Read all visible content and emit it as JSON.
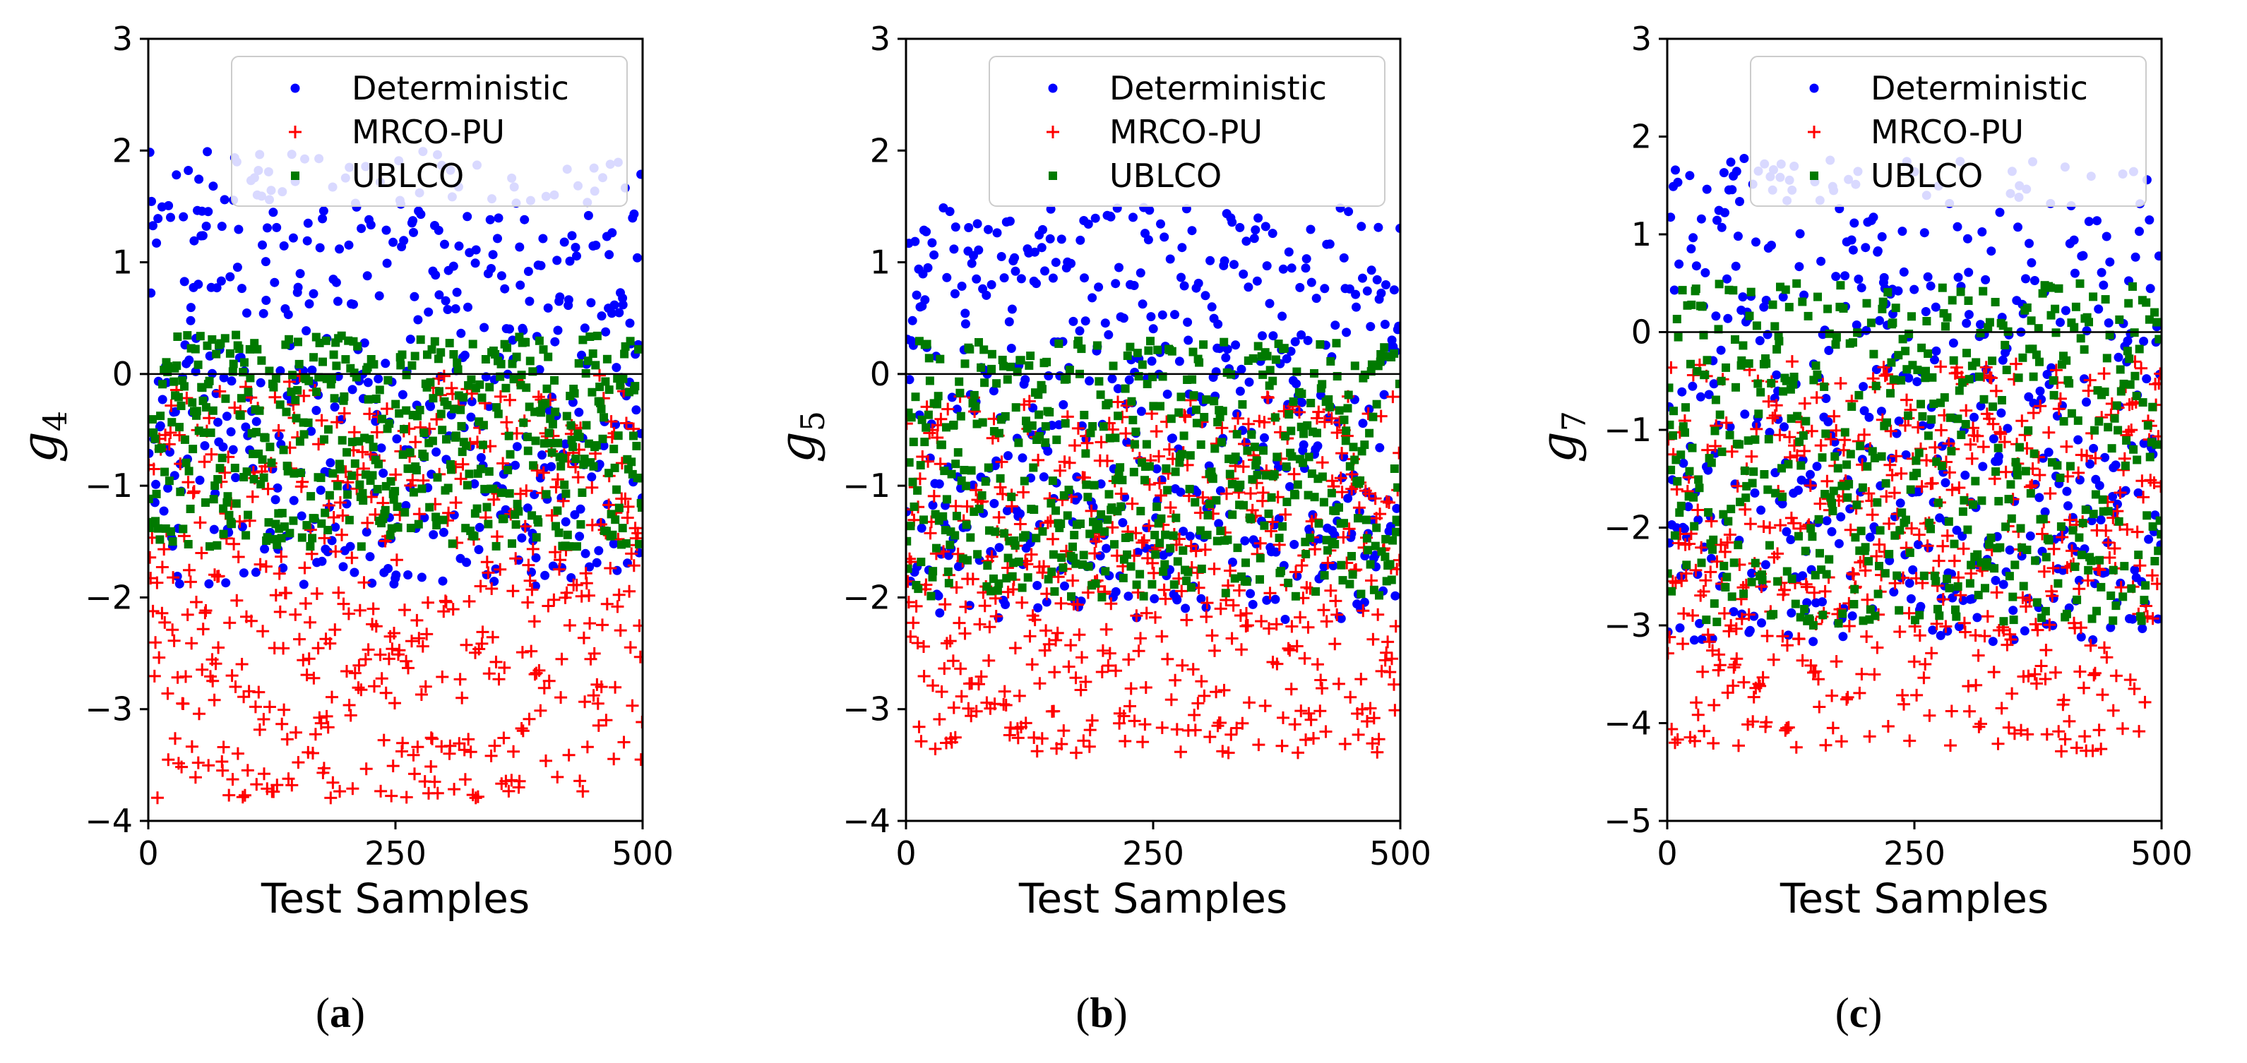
{
  "figure": {
    "panels": [
      {
        "caption_letter": "a",
        "ylabel_main": "g",
        "ylabel_sub": "4",
        "xlabel": "Test Samples"
      },
      {
        "caption_letter": "b",
        "ylabel_main": "g",
        "ylabel_sub": "5",
        "xlabel": "Test Samples"
      },
      {
        "caption_letter": "c",
        "ylabel_main": "g",
        "ylabel_sub": "7",
        "xlabel": "Test Samples"
      }
    ]
  },
  "chart_data": [
    {
      "type": "scatter",
      "title": "",
      "xlabel": "Test Samples",
      "ylabel": "g4",
      "xlim": [
        0,
        500
      ],
      "ylim": [
        -4,
        3
      ],
      "xticks": [
        "0",
        "250",
        "500"
      ],
      "yticks": [
        "3",
        "2",
        "1",
        "0",
        "−1",
        "−2",
        "−3",
        "−4"
      ],
      "reference_line_y": 0,
      "legend_position": "top-right",
      "series_count": 3,
      "series": [
        {
          "name": "Deterministic",
          "color": "#0000ff",
          "marker": "circle",
          "n_points": 500,
          "y_range": [
            -1.9,
            2.0
          ]
        },
        {
          "name": "MRCO-PU",
          "color": "#ff0000",
          "marker": "plus",
          "n_points": 500,
          "y_range": [
            -3.8,
            0.0
          ]
        },
        {
          "name": "UBLCO",
          "color": "#007a00",
          "marker": "square",
          "n_points": 500,
          "y_range": [
            -1.55,
            0.35
          ]
        }
      ]
    },
    {
      "type": "scatter",
      "title": "",
      "xlabel": "Test Samples",
      "ylabel": "g5",
      "xlim": [
        0,
        500
      ],
      "ylim": [
        -4,
        3
      ],
      "xticks": [
        "0",
        "250",
        "500"
      ],
      "yticks": [
        "3",
        "2",
        "1",
        "0",
        "−1",
        "−2",
        "−3",
        "−4"
      ],
      "reference_line_y": 0,
      "legend_position": "top-right",
      "series_count": 3,
      "series": [
        {
          "name": "Deterministic",
          "color": "#0000ff",
          "marker": "circle",
          "n_points": 500,
          "y_range": [
            -2.2,
            1.5
          ]
        },
        {
          "name": "MRCO-PU",
          "color": "#ff0000",
          "marker": "plus",
          "n_points": 500,
          "y_range": [
            -3.4,
            -0.2
          ]
        },
        {
          "name": "UBLCO",
          "color": "#007a00",
          "marker": "square",
          "n_points": 500,
          "y_range": [
            -2.0,
            0.3
          ]
        }
      ]
    },
    {
      "type": "scatter",
      "title": "",
      "xlabel": "Test Samples",
      "ylabel": "g7",
      "xlim": [
        0,
        500
      ],
      "ylim": [
        -5,
        3
      ],
      "xticks": [
        "0",
        "250",
        "500"
      ],
      "yticks": [
        "3",
        "2",
        "1",
        "0",
        "−1",
        "−2",
        "−3",
        "−4",
        "−5"
      ],
      "reference_line_y": 0,
      "legend_position": "top-right",
      "series_count": 3,
      "series": [
        {
          "name": "Deterministic",
          "color": "#0000ff",
          "marker": "circle",
          "n_points": 500,
          "y_range": [
            -3.2,
            1.8
          ]
        },
        {
          "name": "MRCO-PU",
          "color": "#ff0000",
          "marker": "plus",
          "n_points": 500,
          "y_range": [
            -4.3,
            -0.3
          ]
        },
        {
          "name": "UBLCO",
          "color": "#007a00",
          "marker": "square",
          "n_points": 500,
          "y_range": [
            -3.0,
            0.5
          ]
        }
      ]
    }
  ]
}
